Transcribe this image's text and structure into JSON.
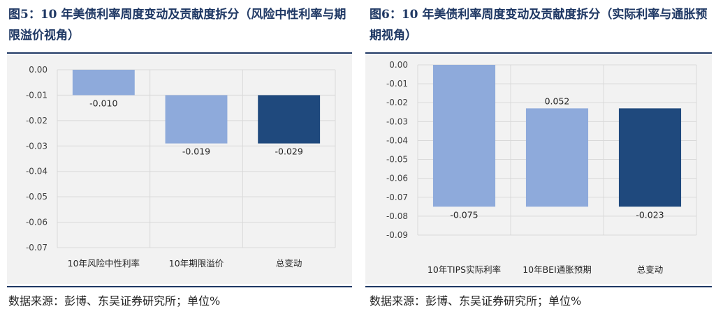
{
  "figures": [
    {
      "title": "图5：10 年美债利率周度变动及贡献度拆分（风险中性利率与期限溢价视角）",
      "source": "数据来源：彭博、东吴证券研究所；单位%",
      "chart_data": {
        "type": "bar",
        "subtype": "waterfall",
        "categories": [
          "10年风险中性利率",
          "10年期限溢价",
          "总变动"
        ],
        "values": [
          -0.01,
          -0.019,
          -0.029
        ],
        "value_labels": [
          "-0.010",
          "-0.019",
          "-0.029"
        ],
        "ylim": [
          -0.07,
          0.0
        ],
        "yticks": [
          "0.00",
          "-0.01",
          "-0.02",
          "-0.03",
          "-0.04",
          "-0.05",
          "-0.06",
          "-0.07"
        ],
        "grid": true,
        "colors": [
          "#8eaadb",
          "#8eaadb",
          "#1f497d"
        ]
      }
    },
    {
      "title": "图6：10 年美债利率周度变动及贡献度拆分（实际利率与通胀预期视角）",
      "source": "数据来源：彭博、东吴证券研究所；单位%",
      "chart_data": {
        "type": "bar",
        "subtype": "waterfall",
        "categories": [
          "10年TIPS实际利率",
          "10年BEI通胀预期",
          "总变动"
        ],
        "values": [
          -0.075,
          0.052,
          -0.023
        ],
        "value_labels": [
          "-0.075",
          "0.052",
          "-0.023"
        ],
        "ylim": [
          -0.09,
          0.0
        ],
        "yticks": [
          "0.00",
          "-0.01",
          "-0.02",
          "-0.03",
          "-0.04",
          "-0.05",
          "-0.06",
          "-0.07",
          "-0.08",
          "-0.09"
        ],
        "grid": true,
        "colors": [
          "#8eaadb",
          "#8eaadb",
          "#1f497d"
        ]
      }
    }
  ]
}
